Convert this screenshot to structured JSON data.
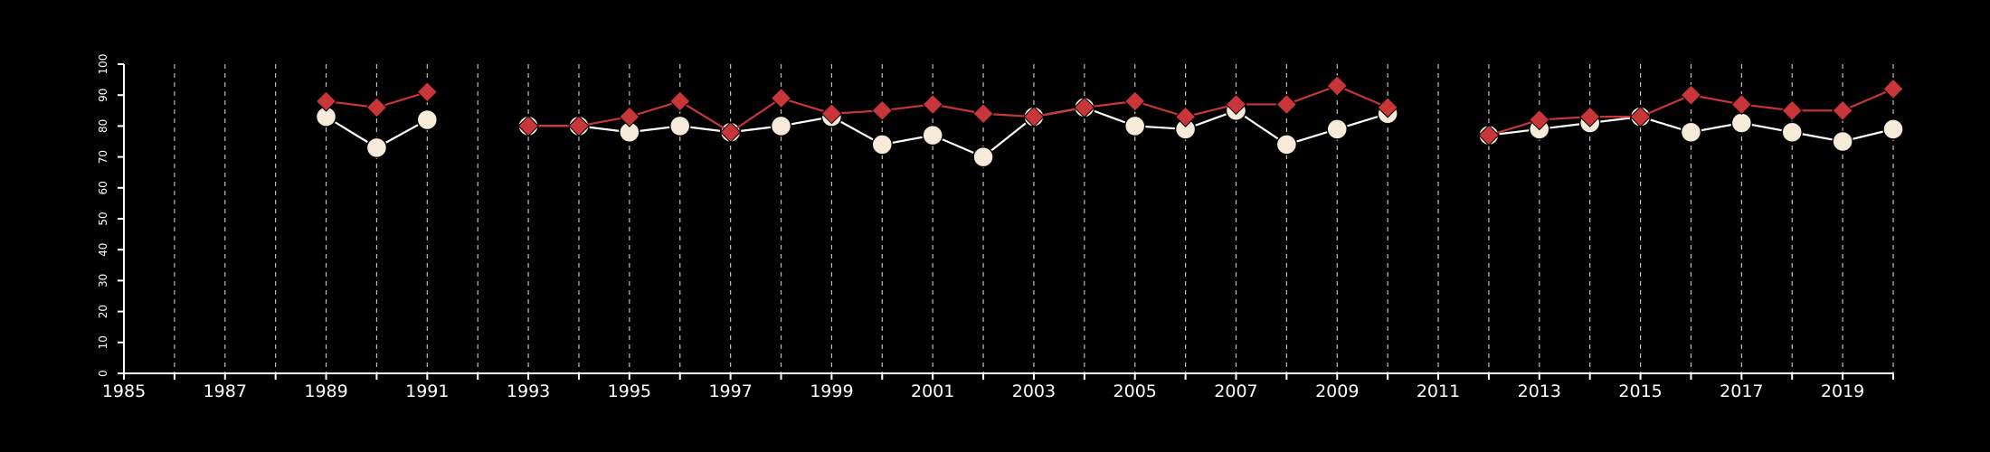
{
  "chart_data": {
    "type": "line",
    "title": "",
    "xlabel": "",
    "ylabel": "",
    "xlim": [
      1985,
      2020
    ],
    "ylim": [
      0,
      100
    ],
    "x_ticks": [
      "1985",
      "1987",
      "1989",
      "1991",
      "1993",
      "1995",
      "1997",
      "1999",
      "2001",
      "2003",
      "2005",
      "2007",
      "2009",
      "2011",
      "2013",
      "2015",
      "2017",
      "2019"
    ],
    "y_ticks": [
      "0",
      "10",
      "20",
      "30",
      "40",
      "50",
      "60",
      "70",
      "80",
      "90",
      "100"
    ],
    "grid": "vertical dashed at every year",
    "colors": {
      "background": "#000000",
      "axis": "#ffffff",
      "grid": "#bfbfbf"
    },
    "series": [
      {
        "marker": "circle",
        "color": "#ffffff",
        "marker_fill": "#f6ead8",
        "points": [
          [
            1989,
            83
          ],
          [
            1990,
            73
          ],
          [
            1991,
            82
          ],
          null,
          [
            1993,
            80
          ],
          [
            1994,
            80
          ],
          [
            1995,
            78
          ],
          [
            1996,
            80
          ],
          [
            1997,
            78
          ],
          [
            1998,
            80
          ],
          [
            1999,
            83
          ],
          [
            2000,
            74
          ],
          [
            2001,
            77
          ],
          [
            2002,
            70
          ],
          [
            2003,
            83
          ],
          [
            2004,
            86
          ],
          [
            2005,
            80
          ],
          [
            2006,
            79
          ],
          [
            2007,
            85
          ],
          [
            2008,
            74
          ],
          [
            2009,
            79
          ],
          [
            2010,
            84
          ],
          null,
          [
            2012,
            77
          ],
          [
            2013,
            79
          ],
          [
            2014,
            81
          ],
          [
            2015,
            83
          ],
          [
            2016,
            78
          ],
          [
            2017,
            81
          ],
          [
            2018,
            78
          ],
          [
            2019,
            75
          ],
          [
            2020,
            79
          ]
        ]
      },
      {
        "marker": "diamond",
        "color": "#c8363a",
        "marker_fill": "#c8363a",
        "points": [
          [
            1989,
            88
          ],
          [
            1990,
            86
          ],
          [
            1991,
            91
          ],
          null,
          [
            1993,
            80
          ],
          [
            1994,
            80
          ],
          [
            1995,
            83
          ],
          [
            1996,
            88
          ],
          [
            1997,
            78
          ],
          [
            1998,
            89
          ],
          [
            1999,
            84
          ],
          [
            2000,
            85
          ],
          [
            2001,
            87
          ],
          [
            2002,
            84
          ],
          [
            2003,
            83
          ],
          [
            2004,
            86
          ],
          [
            2005,
            88
          ],
          [
            2006,
            83
          ],
          [
            2007,
            87
          ],
          [
            2008,
            87
          ],
          [
            2009,
            93
          ],
          [
            2010,
            86
          ],
          null,
          [
            2012,
            77
          ],
          [
            2013,
            82
          ],
          [
            2014,
            83
          ],
          [
            2015,
            83
          ],
          [
            2016,
            90
          ],
          [
            2017,
            87
          ],
          [
            2018,
            85
          ],
          [
            2019,
            85
          ],
          [
            2020,
            92
          ]
        ]
      }
    ]
  }
}
